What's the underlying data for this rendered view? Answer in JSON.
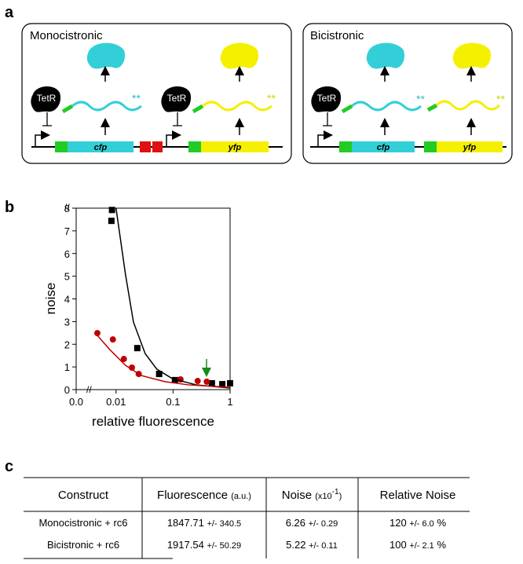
{
  "panel_a": {
    "label": "a",
    "monocistronic": {
      "title": "Monocistronic",
      "repressors": [
        "TetR",
        "TetR"
      ],
      "genes": [
        "cfp",
        "yfp"
      ],
      "stars": [
        "**",
        "**"
      ]
    },
    "bicistronic": {
      "title": "Bicistronic",
      "repressor": "TetR",
      "genes": [
        "cfp",
        "yfp"
      ],
      "stars": [
        "**",
        "**"
      ]
    }
  },
  "panel_b": {
    "label": "b"
  },
  "chart_data": {
    "type": "scatter",
    "xlabel": "relative fluorescence",
    "ylabel": "noise",
    "xscale": "log",
    "xlim": [
      0.002,
      1
    ],
    "ylim": [
      0,
      8
    ],
    "xticks": [
      {
        "value": 0.002,
        "label": "0.0"
      },
      0.01,
      0.1,
      1
    ],
    "yticks": [
      0,
      1,
      2,
      3,
      4,
      5,
      6,
      7,
      8
    ],
    "series": [
      {
        "color": "#000000",
        "marker": "square",
        "x": [
          0.0085,
          0.0083,
          0.0236,
          0.057,
          0.108,
          0.48,
          0.73,
          1.0
        ],
        "values": [
          7.92,
          7.44,
          1.83,
          0.69,
          0.42,
          0.28,
          0.24,
          0.28
        ]
      },
      {
        "color": "#c00000",
        "marker": "circle",
        "x": [
          0.0047,
          0.0088,
          0.0137,
          0.019,
          0.025,
          0.135,
          0.27,
          0.39
        ],
        "values": [
          2.49,
          2.21,
          1.35,
          0.97,
          0.69,
          0.45,
          0.38,
          0.35
        ]
      },
      {
        "color": "#000000",
        "marker": "line",
        "x": [
          0.01,
          0.0147,
          0.0202,
          0.0324,
          0.052,
          0.098,
          0.255,
          1.0
        ],
        "values": [
          8,
          5.05,
          2.98,
          1.59,
          0.9,
          0.48,
          0.21,
          0.07
        ]
      },
      {
        "color": "#c00000",
        "marker": "line",
        "x": [
          0.0047,
          0.0078,
          0.0147,
          0.0277,
          0.072,
          0.186,
          1.0
        ],
        "values": [
          2.39,
          1.76,
          1.07,
          0.62,
          0.35,
          0.21,
          0.1
        ]
      }
    ]
  },
  "panel_c": {
    "label": "c",
    "table": {
      "header": [
        {
          "main": "Construct"
        },
        {
          "main": "Fluorescence",
          "unit": "(a.u.)"
        },
        {
          "main": "Noise",
          "unit": "(x10",
          "exp": "-1",
          "unit_end": ")"
        },
        {
          "main": "Relative Noise"
        }
      ],
      "rows": [
        [
          "Monocistronic + rc6",
          {
            "value": "1847.71",
            "err": "+/- 340.5"
          },
          {
            "value": "6.26",
            "err": "+/- 0.29"
          },
          {
            "value": "120",
            "err": "+/- 6.0",
            "unit": "%"
          }
        ],
        [
          "Bicistronic + rc6",
          {
            "value": "1917.54",
            "err": "+/- 50.29"
          },
          {
            "value": "5.22",
            "err": "+/- 0.11"
          },
          {
            "value": "100",
            "err": "+/- 2.1",
            "unit": "%"
          }
        ]
      ]
    }
  }
}
